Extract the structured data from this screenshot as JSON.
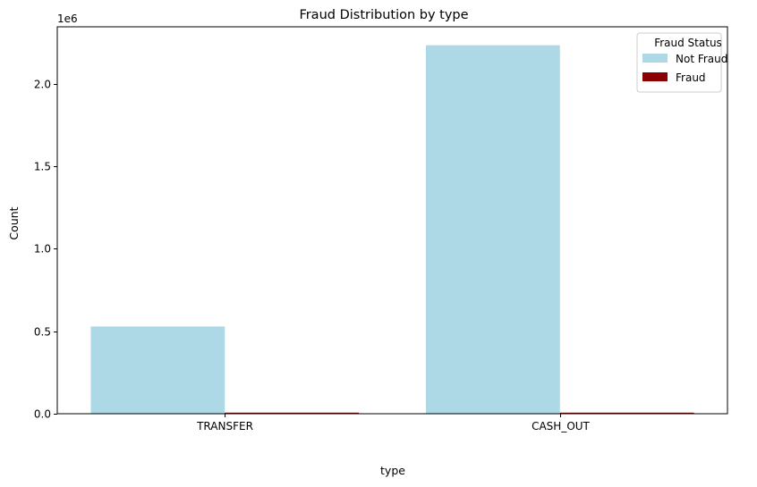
{
  "chart_data": {
    "type": "bar",
    "title": "Fraud Distribution by type",
    "xlabel": "type",
    "ylabel": "Count",
    "y_multiplier_label": "1e6",
    "categories": [
      "TRANSFER",
      "CASH_OUT"
    ],
    "series": [
      {
        "name": "Not Fraud",
        "values": [
          528812,
          2233384
        ],
        "color": "#add8e6"
      },
      {
        "name": "Fraud",
        "values": [
          4097,
          4116
        ],
        "color": "#8b0000"
      }
    ],
    "ylim": [
      0,
      2345053
    ],
    "yticks": [
      0,
      500000,
      1000000,
      1500000,
      2000000
    ],
    "ytick_labels": [
      "0.0",
      "0.5",
      "1.0",
      "1.5",
      "2.0"
    ],
    "legend": {
      "title": "Fraud Status",
      "position": "top-right"
    },
    "grid": false
  }
}
